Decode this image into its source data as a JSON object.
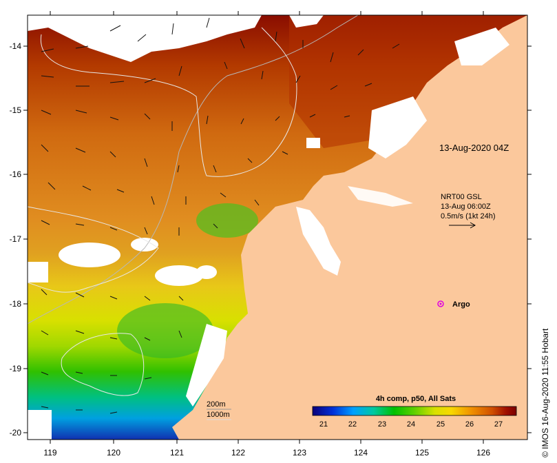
{
  "map": {
    "timestamp_label": "13-Aug-2020 04Z",
    "credit": "© IMOS 16-Aug-2020 11:55 Hobart",
    "currents": {
      "line1": "NRT00 GSL",
      "line2": "13-Aug 06:00Z",
      "line3": "0.5m/s (1kt 24h)"
    },
    "argo_label": "Argo",
    "depth_legend": [
      "200m",
      "1000m"
    ],
    "colorbar": {
      "title": "4h comp, p50, All Sats",
      "ticks": [
        "21",
        "22",
        "23",
        "24",
        "25",
        "26",
        "27"
      ],
      "stops": [
        "#0a007a",
        "#0030d8",
        "#00a0ff",
        "#00c8a0",
        "#00c000",
        "#60d000",
        "#d8e000",
        "#f8d800",
        "#f09000",
        "#d05000",
        "#a01000",
        "#7a0000"
      ]
    },
    "x_ticks": [
      "119",
      "120",
      "121",
      "122",
      "123",
      "124",
      "125",
      "126"
    ],
    "y_ticks": [
      "-14",
      "-15",
      "-16",
      "-17",
      "-18",
      "-19",
      "-20"
    ],
    "colors": {
      "land": "#fbc89c",
      "cloud": "#ffffff"
    }
  }
}
